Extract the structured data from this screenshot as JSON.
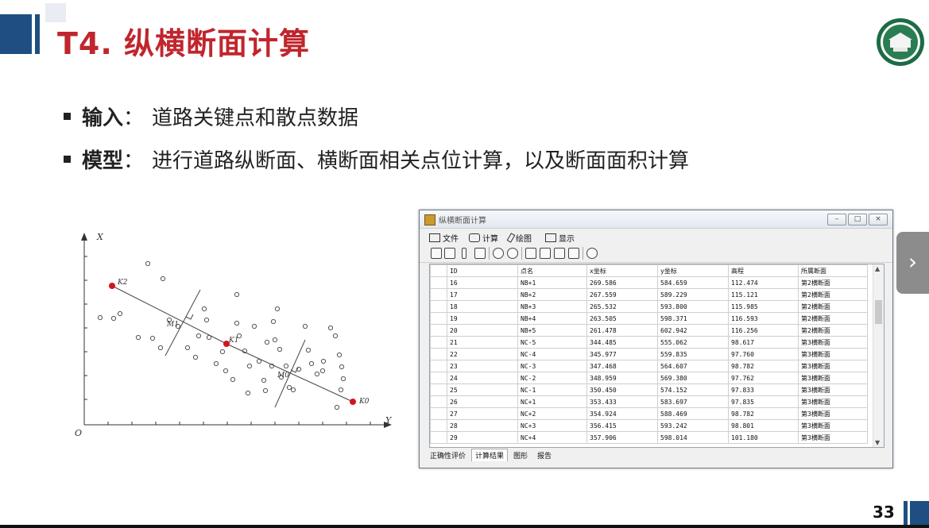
{
  "slide": {
    "title": "T4. 纵横断面计算",
    "page_number": "33",
    "bullets": [
      {
        "label": "输入",
        "sep": "：",
        "text": "道路关键点和散点数据"
      },
      {
        "label": "模型",
        "sep": "：",
        "text": "进行道路纵断面、横断面相关点位计算，以及断面面积计算"
      }
    ]
  },
  "figure": {
    "axis_x": "X",
    "axis_y": "Y",
    "origin": "O",
    "labels": [
      "K2",
      "K1",
      "K0",
      "M1",
      "M0"
    ]
  },
  "app": {
    "title": "纵横断面计算",
    "menu": [
      "文件",
      "计算",
      "绘图",
      "显示"
    ],
    "columns": [
      "ID",
      "点名",
      "x坐标",
      "y坐标",
      "高程",
      "所属断面"
    ],
    "rows": [
      [
        "16",
        "NB+1",
        "269.586",
        "584.659",
        "112.474",
        "第2横断面"
      ],
      [
        "17",
        "NB+2",
        "267.559",
        "589.229",
        "115.121",
        "第2横断面"
      ],
      [
        "18",
        "NB+3",
        "265.532",
        "593.800",
        "115.985",
        "第2横断面"
      ],
      [
        "19",
        "NB+4",
        "263.505",
        "598.371",
        "116.593",
        "第2横断面"
      ],
      [
        "20",
        "NB+5",
        "261.478",
        "602.942",
        "116.256",
        "第2横断面"
      ],
      [
        "21",
        "NC-5",
        "344.485",
        "555.062",
        "98.617",
        "第3横断面"
      ],
      [
        "22",
        "NC-4",
        "345.977",
        "559.835",
        "97.760",
        "第3横断面"
      ],
      [
        "23",
        "NC-3",
        "347.468",
        "564.607",
        "98.782",
        "第3横断面"
      ],
      [
        "24",
        "NC-2",
        "348.959",
        "569.380",
        "97.762",
        "第3横断面"
      ],
      [
        "25",
        "NC-1",
        "350.450",
        "574.152",
        "97.833",
        "第3横断面"
      ],
      [
        "26",
        "NC+1",
        "353.433",
        "583.697",
        "97.835",
        "第3横断面"
      ],
      [
        "27",
        "NC+2",
        "354.924",
        "588.469",
        "98.782",
        "第3横断面"
      ],
      [
        "28",
        "NC+3",
        "356.415",
        "593.242",
        "98.801",
        "第3横断面"
      ],
      [
        "29",
        "NC+4",
        "357.906",
        "598.014",
        "101.180",
        "第3横断面"
      ]
    ],
    "tabs": [
      "正确性评价",
      "计算结果",
      "图形",
      "报告"
    ],
    "active_tab": "计算结果"
  },
  "colors": {
    "title_red": "#c0262d",
    "accent_blue": "#1f4f82",
    "point_red": "#d0161c"
  }
}
